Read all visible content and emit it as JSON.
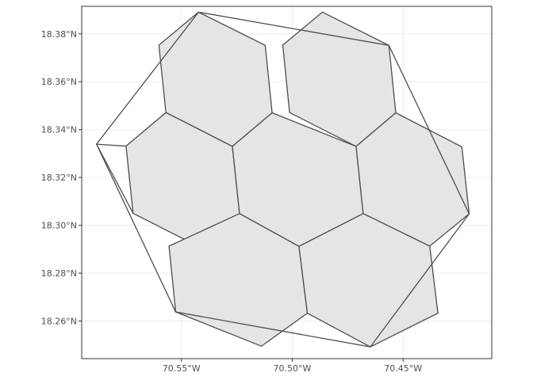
{
  "chart_data": {
    "type": "map",
    "description_tags": [
      "hexagonal grid",
      "convex hull"
    ],
    "xlim": [
      -70.595,
      -70.41
    ],
    "ylim": [
      18.2443,
      18.3915
    ],
    "x_ticks": [
      {
        "value": -70.55,
        "label": "70.55°W"
      },
      {
        "value": -70.5,
        "label": "70.50°W"
      },
      {
        "value": -70.45,
        "label": "70.45°W"
      }
    ],
    "y_ticks": [
      {
        "value": 18.38,
        "label": "18.38°N"
      },
      {
        "value": 18.36,
        "label": "18.36°N"
      },
      {
        "value": 18.34,
        "label": "18.34°N"
      },
      {
        "value": 18.32,
        "label": "18.32°N"
      },
      {
        "value": 18.3,
        "label": "18.30°N"
      },
      {
        "value": 18.28,
        "label": "18.28°N"
      },
      {
        "value": 18.26,
        "label": "18.26°N"
      }
    ],
    "grid": true,
    "colors": {
      "hex_fill": "#e5e5e5",
      "line": "#4d4d4d",
      "grid": "#ebebeb",
      "background": "#ffffff"
    },
    "hexagons": [
      [
        [
          -70.5423,
          18.3891
        ],
        [
          -70.5122,
          18.3752
        ],
        [
          -70.5091,
          18.347
        ],
        [
          -70.527,
          18.333
        ],
        [
          -70.557,
          18.3471
        ],
        [
          -70.5602,
          18.3753
        ]
      ],
      [
        [
          -70.4864,
          18.3891
        ],
        [
          -70.4564,
          18.3752
        ],
        [
          -70.4533,
          18.347
        ],
        [
          -70.4712,
          18.333
        ],
        [
          -70.5012,
          18.3471
        ],
        [
          -70.5043,
          18.3753
        ]
      ],
      [
        [
          -70.557,
          18.3471
        ],
        [
          -70.527,
          18.333
        ],
        [
          -70.5238,
          18.3049
        ],
        [
          -70.5418,
          18.2909
        ],
        [
          -70.5718,
          18.305
        ],
        [
          -70.575,
          18.3331
        ]
      ],
      [
        [
          -70.5091,
          18.347
        ],
        [
          -70.4712,
          18.333
        ],
        [
          -70.468,
          18.3049
        ],
        [
          -70.497,
          18.2912
        ],
        [
          -70.5238,
          18.3049
        ],
        [
          -70.527,
          18.333
        ]
      ],
      [
        [
          -70.4533,
          18.347
        ],
        [
          -70.4235,
          18.3328
        ],
        [
          -70.4202,
          18.3048
        ],
        [
          -70.438,
          18.2913
        ],
        [
          -70.468,
          18.3049
        ],
        [
          -70.4712,
          18.333
        ]
      ],
      [
        [
          -70.5238,
          18.3049
        ],
        [
          -70.497,
          18.2912
        ],
        [
          -70.4932,
          18.2633
        ],
        [
          -70.5139,
          18.2495
        ],
        [
          -70.5526,
          18.2638
        ],
        [
          -70.5556,
          18.2913
        ]
      ],
      [
        [
          -70.468,
          18.3049
        ],
        [
          -70.438,
          18.2913
        ],
        [
          -70.4343,
          18.2633
        ],
        [
          -70.4648,
          18.2492
        ],
        [
          -70.4932,
          18.2633
        ],
        [
          -70.497,
          18.2912
        ]
      ]
    ],
    "hull": [
      [
        -70.5423,
        18.3891
      ],
      [
        -70.4564,
        18.3752
      ],
      [
        -70.4202,
        18.3048
      ],
      [
        -70.4648,
        18.2492
      ],
      [
        -70.5526,
        18.2638
      ],
      [
        -70.5883,
        18.3339
      ]
    ],
    "hull_extra_vertex": [
      -70.5883,
      18.3339
    ],
    "hull_extra_neighbors": [
      [
        -70.575,
        18.3331
      ],
      [
        -70.5718,
        18.305
      ]
    ]
  }
}
